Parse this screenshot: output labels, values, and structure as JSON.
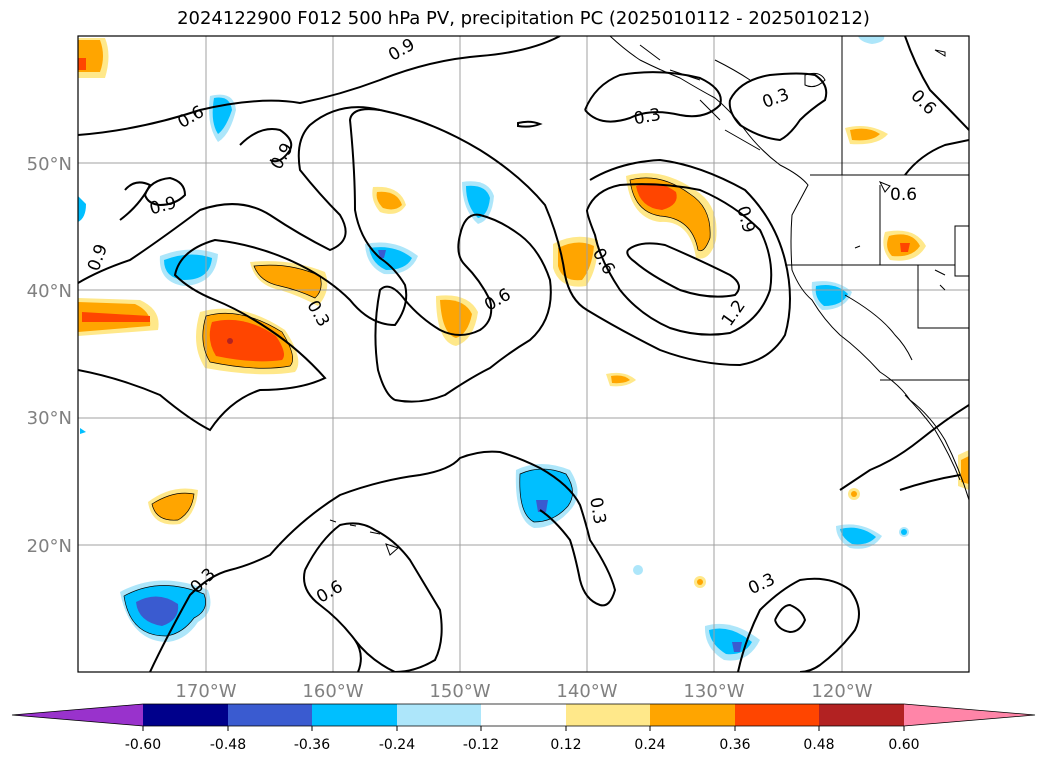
{
  "title": "2024122900 F012 500 hPa PV, precipitation PC (2025010112 - 2025010212)",
  "lat_labels": [
    "50°N",
    "40°N",
    "30°N",
    "20°N"
  ],
  "lon_labels": [
    "170°W",
    "160°W",
    "150°W",
    "140°W",
    "130°W",
    "120°W"
  ],
  "contour_labels": [
    "0.6",
    "0.9",
    "0.9",
    "0.9",
    "0.3",
    "0.6",
    "0.3",
    "0.6",
    "0.9",
    "1.2",
    "0.3",
    "0.6",
    "0.9",
    "0.6",
    "0.3",
    "0.6",
    "0.3",
    "0.3"
  ],
  "colorbar": {
    "ticks": [
      "-0.60",
      "-0.48",
      "-0.36",
      "-0.24",
      "-0.12",
      "0.12",
      "0.24",
      "0.36",
      "0.48",
      "0.60"
    ],
    "colors": [
      "#9932cc",
      "#00008b",
      "#3a5bd0",
      "#00bfff",
      "#ade6fa",
      "#ffffff",
      "#ffe88a",
      "#ffa500",
      "#ff4500",
      "#b22222",
      "#ff85a8"
    ]
  }
}
